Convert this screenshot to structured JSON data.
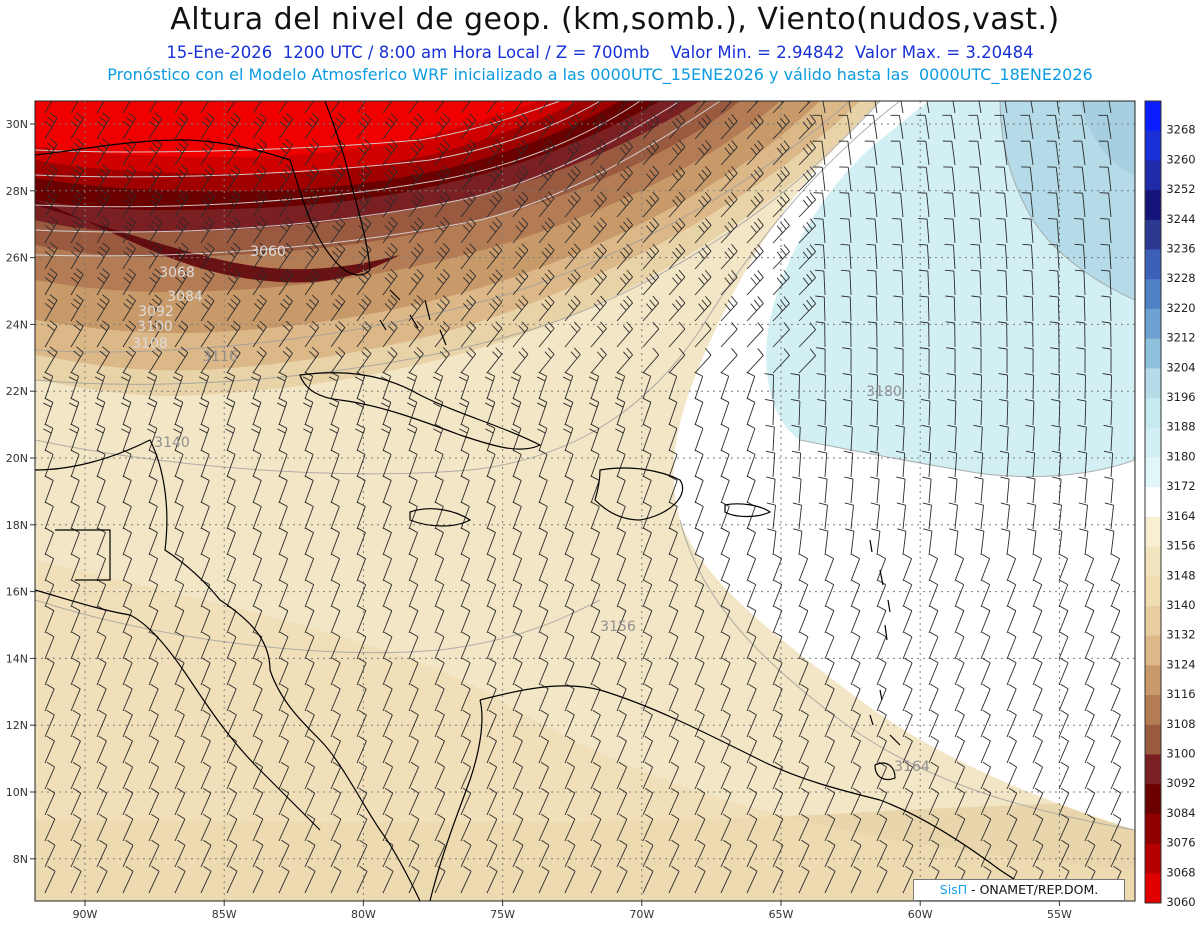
{
  "header": {
    "title": "Altura del nivel de geop. (km,somb.), Viento(nudos,vast.)",
    "line1": "15-Ene-2026  1200 UTC / 8:00 am Hora Local / Z = 700mb    Valor Min. = 2.94842  Valor Max. = 3.20484",
    "line2": "Pronóstico con el Modelo Atmosferico WRF inicializado a las 0000UTC_15ENE2026 y válido hasta las  0000UTC_18ENE2026"
  },
  "axes": {
    "lat_labels": [
      "30N",
      "28N",
      "26N",
      "24N",
      "22N",
      "20N",
      "18N",
      "16N",
      "14N",
      "12N",
      "10N",
      "8N"
    ],
    "lon_labels": [
      "90W",
      "85W",
      "80W",
      "75W",
      "70W",
      "65W",
      "60W",
      "55W"
    ]
  },
  "colorbar": {
    "levels": [
      "3268",
      "3260",
      "3252",
      "3244",
      "3236",
      "3228",
      "3220",
      "3212",
      "3204",
      "3196",
      "3188",
      "3180",
      "3172",
      "3164",
      "3156",
      "3148",
      "3140",
      "3132",
      "3124",
      "3116",
      "3108",
      "3100",
      "3092",
      "3084",
      "3076",
      "3068",
      "3060"
    ],
    "colors": [
      "#0a1eff",
      "#1a2fd8",
      "#1e2aa8",
      "#16137a",
      "#2b3a90",
      "#3c5fb8",
      "#4f82c4",
      "#6ea2d2",
      "#8fc0dc",
      "#b5dbe8",
      "#c6e9f0",
      "#d2f0f4",
      "#e0f6f8",
      "#ffffff",
      "#f8efd2",
      "#f3e4c0",
      "#efdcb0",
      "#e8cda0",
      "#dcb888",
      "#c89a6a",
      "#b47c55",
      "#9a5a40",
      "#7a1f22",
      "#6b0000",
      "#8f0000",
      "#b50000",
      "#e00000"
    ]
  },
  "contour_labels": [
    {
      "text": "3060",
      "shade": "light"
    },
    {
      "text": "3068",
      "shade": "light"
    },
    {
      "text": "3084",
      "shade": "light"
    },
    {
      "text": "3092",
      "shade": "light"
    },
    {
      "text": "3100",
      "shade": "light"
    },
    {
      "text": "3108",
      "shade": "light"
    },
    {
      "text": "3116",
      "shade": "dark"
    },
    {
      "text": "3140",
      "shade": "dark"
    },
    {
      "text": "3156",
      "shade": "dark"
    },
    {
      "text": "3164",
      "shade": "dark"
    },
    {
      "text": "3180",
      "shade": "dark"
    }
  ],
  "footer": {
    "brand": "SisΠ",
    "org": " - ONAMET/REP.DOM."
  },
  "colors": {
    "title": "#111111",
    "line1": "#1830d8",
    "line2": "#0a9be0",
    "high_shading": "#e00000",
    "low_shading": "#d2f0f4"
  }
}
